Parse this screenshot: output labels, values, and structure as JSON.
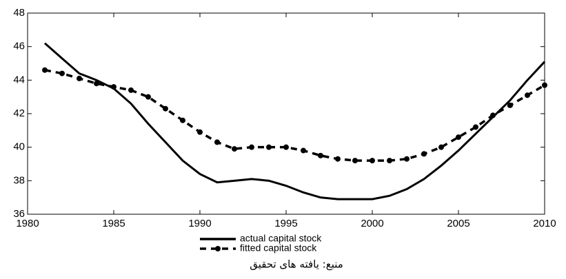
{
  "chart_data": {
    "type": "line",
    "x": [
      1981,
      1982,
      1983,
      1984,
      1985,
      1986,
      1987,
      1988,
      1989,
      1990,
      1991,
      1992,
      1993,
      1994,
      1995,
      1996,
      1997,
      1998,
      1999,
      2000,
      2001,
      2002,
      2003,
      2004,
      2005,
      2006,
      2007,
      2008,
      2009,
      2010
    ],
    "series": [
      {
        "name": "actual capital stock",
        "color": "#000000",
        "style": "solid",
        "values": [
          46.2,
          45.3,
          44.4,
          44.0,
          43.5,
          42.6,
          41.4,
          40.3,
          39.2,
          38.4,
          37.9,
          38.0,
          38.1,
          38.0,
          37.7,
          37.3,
          37.0,
          36.9,
          36.9,
          36.9,
          37.1,
          37.5,
          38.1,
          38.9,
          39.8,
          40.8,
          41.8,
          42.8,
          44.0,
          45.1
        ]
      },
      {
        "name": "fitted capital stock",
        "color": "#000000",
        "style": "dashed",
        "values": [
          44.6,
          44.4,
          44.1,
          43.8,
          43.6,
          43.4,
          43.0,
          42.3,
          41.6,
          40.9,
          40.3,
          39.9,
          40.0,
          40.0,
          40.0,
          39.8,
          39.5,
          39.3,
          39.2,
          39.2,
          39.2,
          39.3,
          39.6,
          40.0,
          40.6,
          41.2,
          41.9,
          42.5,
          43.1,
          43.7
        ]
      }
    ],
    "xlim": [
      1980,
      2010
    ],
    "xticks": [
      1980,
      1985,
      1990,
      1995,
      2000,
      2005,
      2010
    ],
    "ylim": [
      36,
      48
    ],
    "yticks": [
      36,
      38,
      40,
      42,
      44,
      46,
      48
    ],
    "caption": "منبع: یافته های تحقیق"
  }
}
